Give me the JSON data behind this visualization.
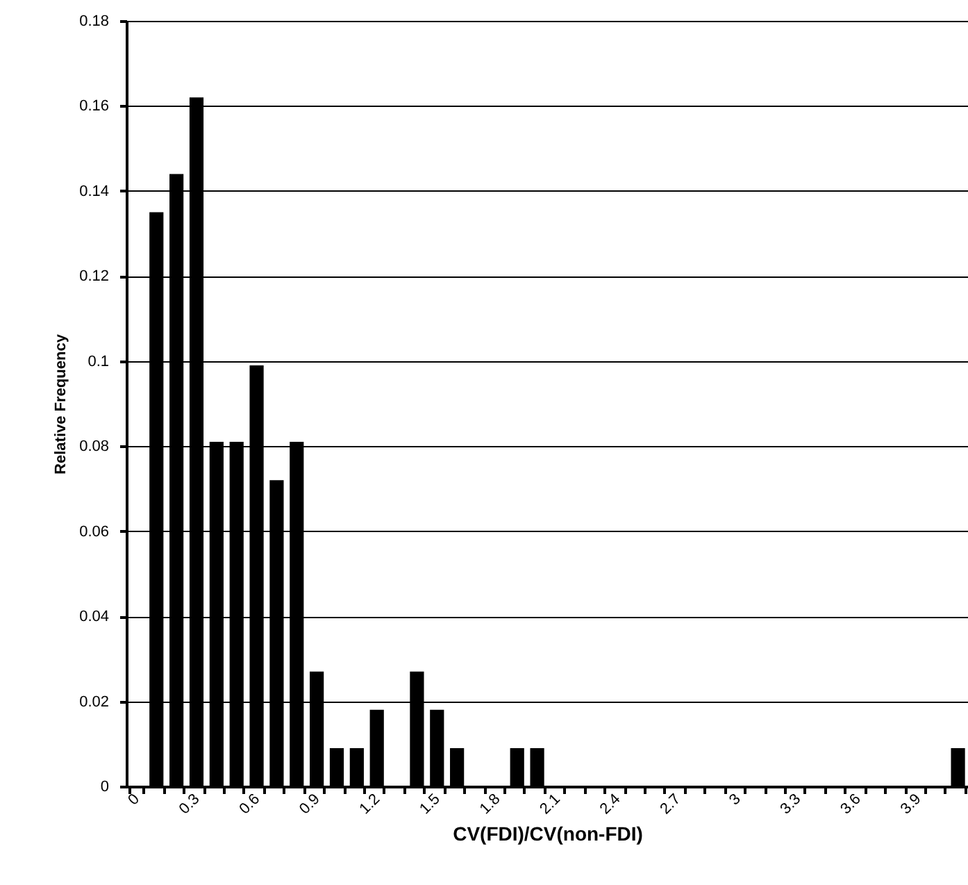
{
  "chart_data": {
    "type": "bar",
    "xlabel": "CV(FDI)/CV(non-FDI)",
    "ylabel": "Relative Frequency",
    "categories": [
      "0",
      null,
      null,
      "0.3",
      null,
      null,
      "0.6",
      null,
      null,
      "0.9",
      null,
      null,
      "1.2",
      null,
      null,
      "1.5",
      null,
      null,
      "1.8",
      null,
      null,
      "2.1",
      null,
      null,
      "2.4",
      null,
      null,
      "2.7",
      null,
      null,
      "3",
      null,
      null,
      "3.3",
      null,
      null,
      "3.6",
      null,
      null,
      "3.9",
      null,
      null
    ],
    "values": [
      0,
      0.135,
      0.144,
      0.162,
      0.081,
      0.081,
      0.099,
      0.072,
      0.081,
      0.027,
      0.009,
      0.009,
      0.018,
      0,
      0.027,
      0.018,
      0.009,
      0,
      0,
      0.009,
      0.009,
      0,
      0,
      0,
      0,
      0,
      0,
      0,
      0,
      0,
      0,
      0,
      0,
      0,
      0,
      0,
      0,
      0,
      0,
      0,
      0,
      0.009
    ],
    "color": "#000000",
    "ylim": [
      0,
      0.18
    ],
    "yticks": [
      0,
      0.02,
      0.04,
      0.06,
      0.08,
      0.1,
      0.12,
      0.14,
      0.16,
      0.18
    ],
    "grid": "y"
  }
}
